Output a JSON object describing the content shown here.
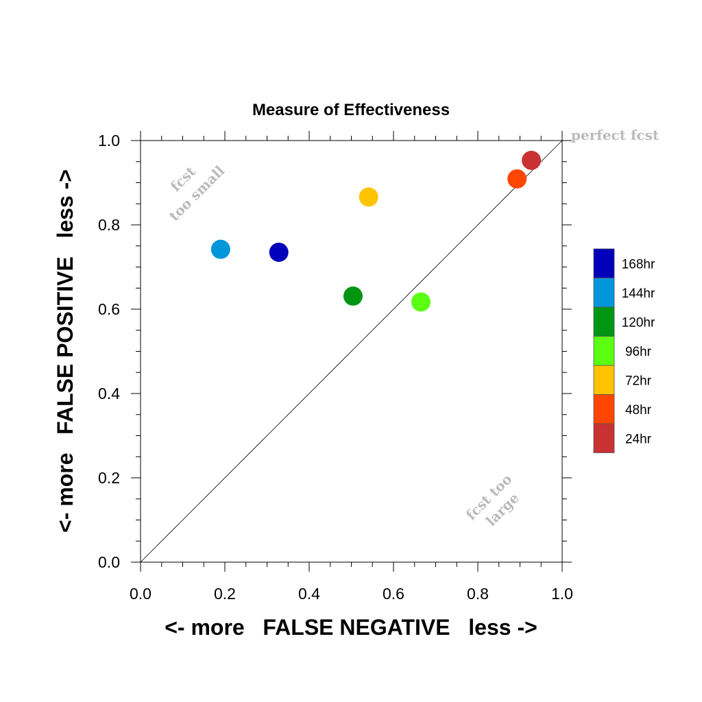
{
  "chart_data": {
    "type": "scatter",
    "title": "Measure of Effectiveness",
    "xlabel": "<- more   FALSE NEGATIVE   less ->",
    "ylabel": "<- more   FALSE POSITIVE   less ->",
    "xlim": [
      0.0,
      1.0
    ],
    "ylim": [
      0.0,
      1.0
    ],
    "x_ticks": [
      "0.0",
      "0.2",
      "0.4",
      "0.6",
      "0.8",
      "1.0"
    ],
    "y_ticks": [
      "0.0",
      "0.2",
      "0.4",
      "0.6",
      "0.8",
      "1.0"
    ],
    "grid": false,
    "diagonal_line": true,
    "legend_position": "right",
    "annotations": {
      "perfect": "perfect fcst",
      "too_small_line1": "fcst",
      "too_small_line2": "too small",
      "too_large_line1": "fcst too",
      "too_large_line2": "large"
    },
    "series": [
      {
        "name": "168hr",
        "color": "#0000bb",
        "x": 0.328,
        "y": 0.735
      },
      {
        "name": "144hr",
        "color": "#0096dc",
        "x": 0.19,
        "y": 0.742
      },
      {
        "name": "120hr",
        "color": "#009614",
        "x": 0.504,
        "y": 0.631
      },
      {
        "name": "96hr",
        "color": "#5aff12",
        "x": 0.665,
        "y": 0.617
      },
      {
        "name": "72hr",
        "color": "#ffc300",
        "x": 0.541,
        "y": 0.866
      },
      {
        "name": "48hr",
        "color": "#ff4600",
        "x": 0.893,
        "y": 0.909
      },
      {
        "name": "24hr",
        "color": "#c83232",
        "x": 0.927,
        "y": 0.953
      }
    ]
  }
}
